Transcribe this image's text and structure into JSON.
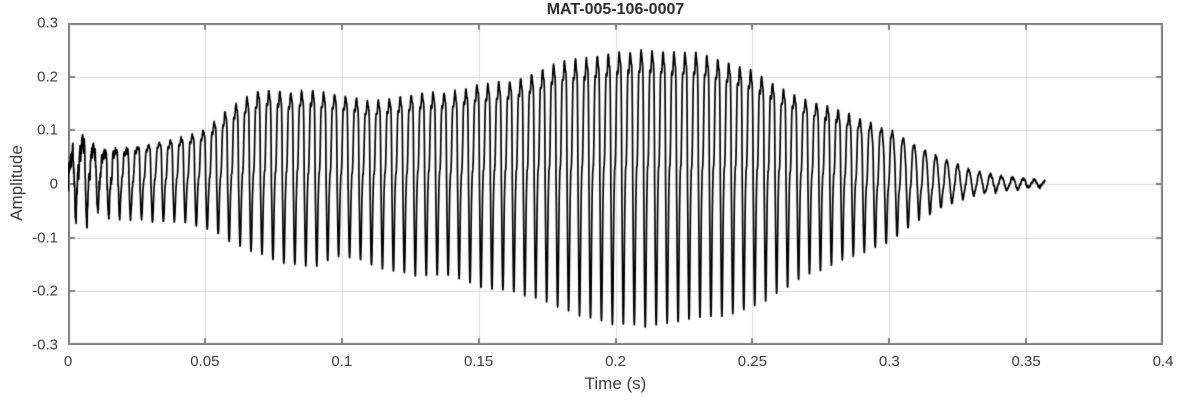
{
  "figure": {
    "background": "#ffffff"
  },
  "chart_data": {
    "type": "line",
    "title": "MAT-005-106-0007",
    "xlabel": "Time (s)",
    "ylabel": "Amplitude",
    "xlim": [
      0,
      0.4
    ],
    "ylim": [
      -0.3,
      0.3
    ],
    "grid": true,
    "legend": "none",
    "xticks": [
      0,
      0.05,
      0.1,
      0.15,
      0.2,
      0.25,
      0.3,
      0.35,
      0.4
    ],
    "xtick_labels": [
      "0",
      "0.05",
      "0.1",
      "0.15",
      "0.2",
      "0.25",
      "0.3",
      "0.35",
      "0.4"
    ],
    "yticks": [
      -0.3,
      -0.2,
      -0.1,
      0,
      0.1,
      0.2,
      0.3
    ],
    "ytick_labels": [
      "-0.3",
      "-0.2",
      "-0.1",
      "0",
      "0.1",
      "0.2",
      "0.3"
    ],
    "line_color": "#000000",
    "line_width": 1.7,
    "style": {
      "axis_color": "#7d7d7d",
      "grid_color": "#dcdcdc",
      "tick_label_color": "#3d3d3d",
      "title_color": "#2e2e2e"
    },
    "signal": {
      "f0_hz": 250,
      "t_start_s": 0,
      "t_end_s": 0.357,
      "sample_rate": 20000,
      "envelope_t": [
        0,
        0.004,
        0.01,
        0.02,
        0.03,
        0.04,
        0.05,
        0.06,
        0.07,
        0.08,
        0.09,
        0.1,
        0.11,
        0.12,
        0.13,
        0.14,
        0.15,
        0.16,
        0.17,
        0.18,
        0.19,
        0.2,
        0.21,
        0.22,
        0.23,
        0.24,
        0.25,
        0.26,
        0.27,
        0.28,
        0.29,
        0.3,
        0.31,
        0.32,
        0.33,
        0.34,
        0.35,
        0.357
      ],
      "envelope_pos": [
        0.04,
        0.08,
        0.06,
        0.065,
        0.075,
        0.085,
        0.1,
        0.145,
        0.175,
        0.17,
        0.175,
        0.165,
        0.155,
        0.16,
        0.17,
        0.17,
        0.185,
        0.19,
        0.205,
        0.23,
        0.235,
        0.245,
        0.25,
        0.245,
        0.245,
        0.23,
        0.21,
        0.18,
        0.155,
        0.14,
        0.12,
        0.1,
        0.07,
        0.045,
        0.025,
        0.014,
        0.009,
        0.006
      ],
      "envelope_neg": [
        0.04,
        0.065,
        0.055,
        0.06,
        0.07,
        0.07,
        0.08,
        0.11,
        0.13,
        0.15,
        0.155,
        0.13,
        0.15,
        0.165,
        0.17,
        0.17,
        0.19,
        0.2,
        0.21,
        0.23,
        0.25,
        0.26,
        0.265,
        0.26,
        0.25,
        0.245,
        0.23,
        0.2,
        0.17,
        0.15,
        0.13,
        0.11,
        0.07,
        0.042,
        0.022,
        0.013,
        0.008,
        0.005
      ],
      "harmonics": [
        {
          "f": 1,
          "a": 1.0,
          "p": 0.0
        },
        {
          "f": 2,
          "a": 0.52,
          "p": 2.0
        },
        {
          "f": 3,
          "a": 0.3,
          "p": 4.0
        },
        {
          "f": 4,
          "a": 0.14,
          "p": 5.6
        }
      ],
      "harmonic_fade_start_s": 0.28,
      "harmonic_fade_len_s": 0.06,
      "onset_noise_amp": 0.035,
      "onset_noise_end_s": 0.028,
      "base_noise_amp": 0.005,
      "seed": 7
    }
  }
}
